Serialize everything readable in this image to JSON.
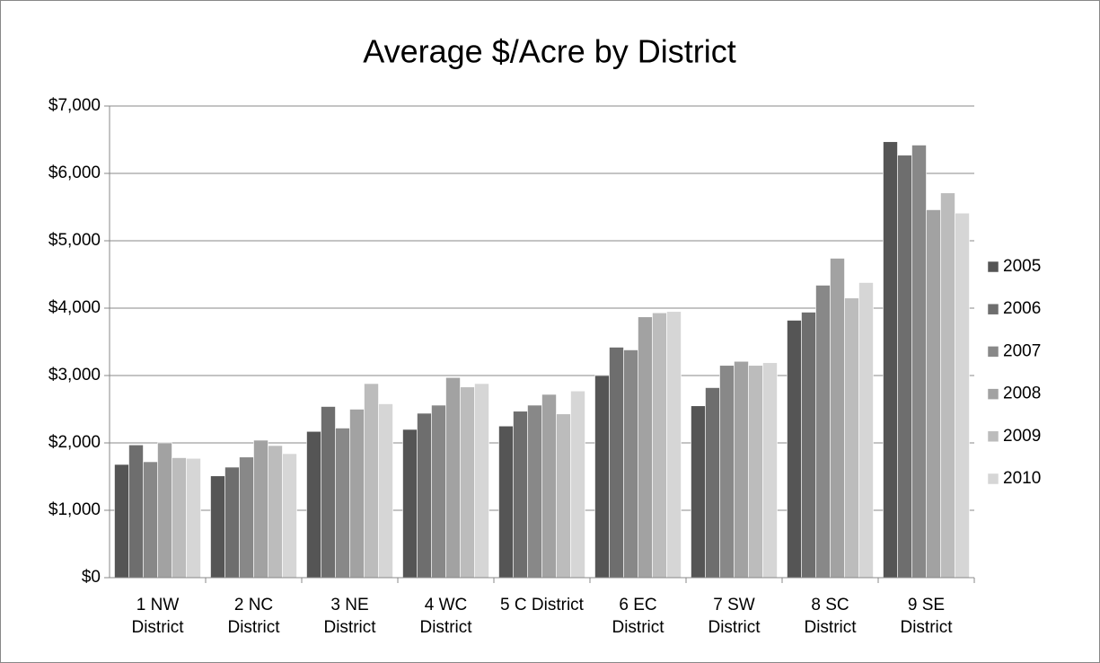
{
  "chart_data": {
    "type": "bar",
    "title": "Average $/Acre by District",
    "categories": [
      "1 NW District",
      "2 NC District",
      "3 NE District",
      "4 WC District",
      "5 C District",
      "6 EC District",
      "7 SW District",
      "8 SC District",
      "9 SE District"
    ],
    "series": [
      {
        "name": "2005",
        "color": "#555555",
        "values": [
          1680,
          1510,
          2170,
          2200,
          2250,
          3000,
          2550,
          3820,
          6470
        ]
      },
      {
        "name": "2006",
        "color": "#6e6e6e",
        "values": [
          1970,
          1640,
          2540,
          2440,
          2470,
          3420,
          2820,
          3940,
          6270
        ]
      },
      {
        "name": "2007",
        "color": "#888888",
        "values": [
          1720,
          1790,
          2220,
          2560,
          2560,
          3380,
          3150,
          4340,
          6420
        ]
      },
      {
        "name": "2008",
        "color": "#a2a2a2",
        "values": [
          2000,
          2040,
          2500,
          2970,
          2720,
          3870,
          3210,
          4740,
          5460
        ]
      },
      {
        "name": "2009",
        "color": "#bcbcbc",
        "values": [
          1780,
          1960,
          2880,
          2830,
          2430,
          3930,
          3150,
          4150,
          5710
        ]
      },
      {
        "name": "2010",
        "color": "#d6d6d6",
        "values": [
          1770,
          1840,
          2580,
          2880,
          2770,
          3950,
          3190,
          4380,
          5410
        ]
      }
    ],
    "ylim": [
      0,
      7000
    ],
    "yticks": [
      {
        "value": 0,
        "label": "$0"
      },
      {
        "value": 1000,
        "label": "$1,000"
      },
      {
        "value": 2000,
        "label": "$2,000"
      },
      {
        "value": 3000,
        "label": "$3,000"
      },
      {
        "value": 4000,
        "label": "$4,000"
      },
      {
        "value": 5000,
        "label": "$5,000"
      },
      {
        "value": 6000,
        "label": "$6,000"
      },
      {
        "value": 7000,
        "label": "$7,000"
      }
    ],
    "grid": true,
    "legend": "right"
  }
}
